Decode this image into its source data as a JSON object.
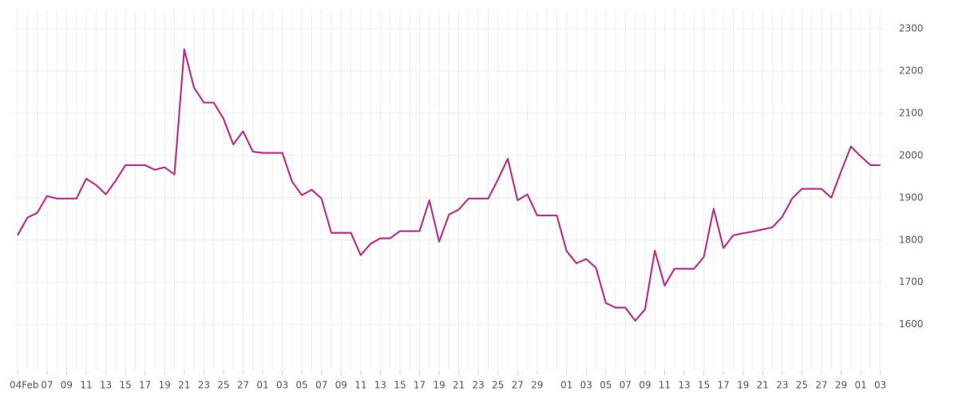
{
  "chart_data": {
    "type": "line",
    "categories": [
      "04Feb",
      null,
      null,
      "07",
      null,
      "09",
      null,
      "11",
      null,
      "13",
      null,
      "15",
      null,
      "17",
      null,
      "19",
      null,
      "21",
      null,
      "23",
      null,
      "25",
      null,
      "27",
      null,
      "01",
      null,
      "03",
      null,
      "05",
      null,
      "07",
      null,
      "09",
      null,
      "11",
      null,
      "13",
      null,
      "15",
      null,
      "17",
      null,
      "19",
      null,
      "21",
      null,
      "23",
      null,
      "25",
      null,
      "27",
      null,
      "29",
      null,
      null,
      "01",
      null,
      "03",
      null,
      "05",
      null,
      "07",
      null,
      "09",
      null,
      "11",
      null,
      "13",
      null,
      "15",
      null,
      "17",
      null,
      "19",
      null,
      "21",
      null,
      "23",
      null,
      "25",
      null,
      "27",
      null,
      "29",
      null,
      "01",
      null,
      "03"
    ],
    "values": [
      1811,
      1853,
      1864,
      1904,
      1898,
      1898,
      1898,
      1945,
      1930,
      1908,
      1940,
      1977,
      1977,
      1977,
      1966,
      1972,
      1955,
      2251,
      2160,
      2125,
      2125,
      2087,
      2026,
      2057,
      2009,
      2006,
      2006,
      2006,
      1938,
      1906,
      1919,
      1898,
      1817,
      1817,
      1817,
      1764,
      1791,
      1804,
      1804,
      1821,
      1821,
      1821,
      1894,
      1796,
      1860,
      1872,
      1898,
      1898,
      1898,
      1943,
      1992,
      1894,
      1908,
      1858,
      1858,
      1858,
      1774,
      1745,
      1755,
      1734,
      1651,
      1640,
      1640,
      1609,
      1636,
      1775,
      1692,
      1732,
      1732,
      1732,
      1760,
      1874,
      1781,
      1811,
      1816,
      1820,
      1825,
      1830,
      1855,
      1898,
      1921,
      1921,
      1921,
      1900,
      1962,
      2021,
      1998,
      1977,
      1977
    ],
    "color": "#b5338a",
    "ylim": [
      1490,
      2345
    ],
    "yticks": [
      1600,
      1700,
      1800,
      1900,
      2000,
      2100,
      2200,
      2300
    ],
    "grid": true
  }
}
